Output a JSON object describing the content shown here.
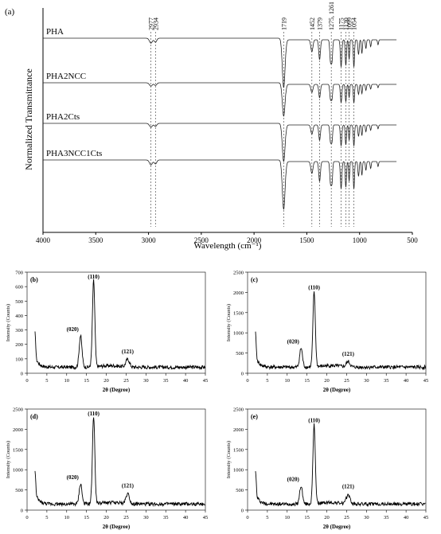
{
  "chart_data": [
    {
      "panel": "(a)",
      "type": "line",
      "xlabel": "Wavelength (cm⁻¹)",
      "ylabel": "Normalized Transmittance",
      "xlim": [
        4000,
        500
      ],
      "x_ticks": [
        4000,
        3500,
        3000,
        2500,
        2000,
        1500,
        1000,
        500
      ],
      "series": [
        {
          "name": "PHA"
        },
        {
          "name": "PHA2NCC"
        },
        {
          "name": "PHA2Cts"
        },
        {
          "name": "PHA3NCC1Cts"
        }
      ],
      "peaks": [
        {
          "x": 2977,
          "label": "2977"
        },
        {
          "x": 2934,
          "label": "2934"
        },
        {
          "x": 1719,
          "label": "1719"
        },
        {
          "x": 1452,
          "label": "1452"
        },
        {
          "x": 1379,
          "label": "1379"
        },
        {
          "x": 1268,
          "label": "1275, 1261"
        },
        {
          "x": 1175,
          "label": "1175"
        },
        {
          "x": 1130,
          "label": "1130"
        },
        {
          "x": 1099,
          "label": "1099"
        },
        {
          "x": 1054,
          "label": "1054"
        }
      ]
    },
    {
      "panel": "(b)",
      "type": "line",
      "xlabel": "2θ (Degree)",
      "ylabel": "Intensity (Counts)",
      "xlim": [
        0,
        45
      ],
      "ylim": [
        0,
        700
      ],
      "x_ticks": [
        0,
        5,
        10,
        15,
        20,
        25,
        30,
        35,
        40,
        45
      ],
      "y_ticks": [
        0,
        100,
        200,
        300,
        400,
        500,
        600,
        700
      ],
      "peaks": [
        {
          "x": 13.5,
          "y": 260,
          "label": "(020)"
        },
        {
          "x": 16.8,
          "y": 640,
          "label": "(110)"
        },
        {
          "x": 25.4,
          "y": 95,
          "label": "(121)"
        }
      ]
    },
    {
      "panel": "(c)",
      "type": "line",
      "xlabel": "2θ (Degree)",
      "ylabel": "Intensity (Counts)",
      "xlim": [
        0,
        45
      ],
      "ylim": [
        0,
        2500
      ],
      "x_ticks": [
        0,
        5,
        10,
        15,
        20,
        25,
        30,
        35,
        40,
        45
      ],
      "y_ticks": [
        0,
        500,
        1000,
        1500,
        2000,
        2500
      ],
      "peaks": [
        {
          "x": 13.5,
          "y": 620,
          "label": "(020)"
        },
        {
          "x": 16.8,
          "y": 2000,
          "label": "(110)"
        },
        {
          "x": 25.4,
          "y": 280,
          "label": "(121)"
        }
      ]
    },
    {
      "panel": "(d)",
      "type": "line",
      "xlabel": "2θ (Degree)",
      "ylabel": "Intensity (Counts)",
      "xlim": [
        0,
        45
      ],
      "ylim": [
        0,
        2500
      ],
      "x_ticks": [
        0,
        5,
        10,
        15,
        20,
        25,
        30,
        35,
        40,
        45
      ],
      "y_ticks": [
        0,
        500,
        1000,
        1500,
        2000,
        2500
      ],
      "peaks": [
        {
          "x": 13.5,
          "y": 650,
          "label": "(020)"
        },
        {
          "x": 16.8,
          "y": 2320,
          "label": "(110)"
        },
        {
          "x": 25.4,
          "y": 400,
          "label": "(121)"
        }
      ]
    },
    {
      "panel": "(e)",
      "type": "line",
      "xlabel": "2θ (Degree)",
      "ylabel": "Intensity (Counts)",
      "xlim": [
        0,
        45
      ],
      "ylim": [
        0,
        2500
      ],
      "x_ticks": [
        0,
        5,
        10,
        15,
        20,
        25,
        30,
        35,
        40,
        45
      ],
      "y_ticks": [
        0,
        500,
        1000,
        1500,
        2000,
        2500
      ],
      "peaks": [
        {
          "x": 13.5,
          "y": 600,
          "label": "(020)"
        },
        {
          "x": 16.8,
          "y": 2100,
          "label": "(110)"
        },
        {
          "x": 25.4,
          "y": 380,
          "label": "(121)"
        }
      ]
    }
  ]
}
